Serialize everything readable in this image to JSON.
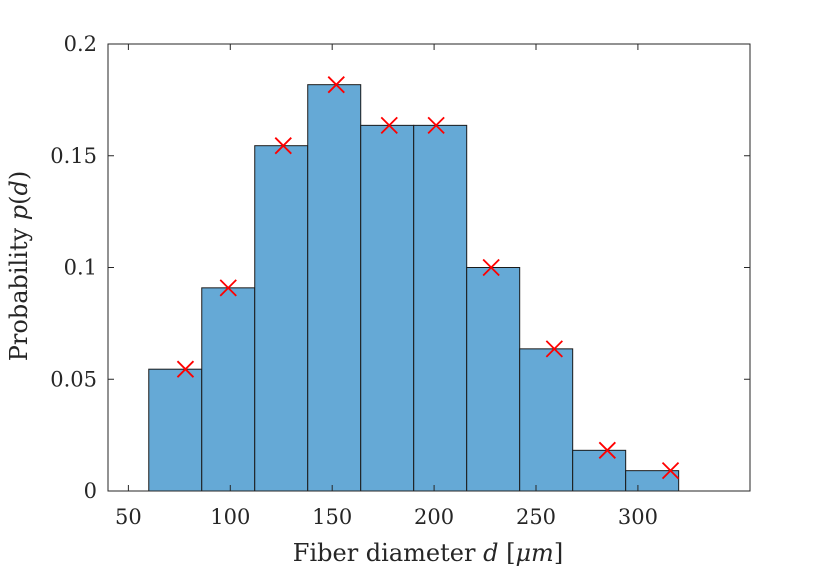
{
  "chart_data": {
    "type": "bar",
    "subtype": "histogram",
    "xlabel": "Fiber diameter d [μm]",
    "ylabel": "Probability p(d)",
    "xlabel_parts": {
      "text": "Fiber diameter ",
      "var": "d",
      "unit_open": " [",
      "unit_mu": "μ",
      "unit_m": "m",
      "unit_close": "]"
    },
    "ylabel_parts": {
      "text": "Probability ",
      "var": "p",
      "open": "(",
      "arg": "d",
      "close": ")"
    },
    "xlim": [
      40,
      355
    ],
    "ylim": [
      0,
      0.2
    ],
    "xticks": [
      50,
      100,
      150,
      200,
      250,
      300
    ],
    "yticks": [
      0,
      0.05,
      0.1,
      0.15,
      0.2
    ],
    "ytick_labels": [
      "0",
      "0.05",
      "0.1",
      "0.15",
      "0.2"
    ],
    "bin_edges": [
      60,
      86,
      112,
      138,
      164,
      190,
      216,
      242,
      268,
      294,
      320
    ],
    "series": [
      {
        "values": [
          0.0545,
          0.0909,
          0.1545,
          0.1818,
          0.1636,
          0.1636,
          0.1,
          0.0636,
          0.0182,
          0.0091
        ]
      },
      {
        "x": [
          78,
          99,
          126,
          152,
          178,
          201,
          228,
          259,
          285,
          316
        ],
        "values": [
          0.0545,
          0.0909,
          0.1545,
          0.1818,
          0.1636,
          0.1636,
          0.1,
          0.0636,
          0.0182,
          0.0091
        ]
      }
    ],
    "colors": {
      "bar_fill": "#65a9d6",
      "bar_edge": "#1a1a1a",
      "marker": "#ff0000",
      "axis": "#262626"
    },
    "grid": false,
    "box": true
  }
}
